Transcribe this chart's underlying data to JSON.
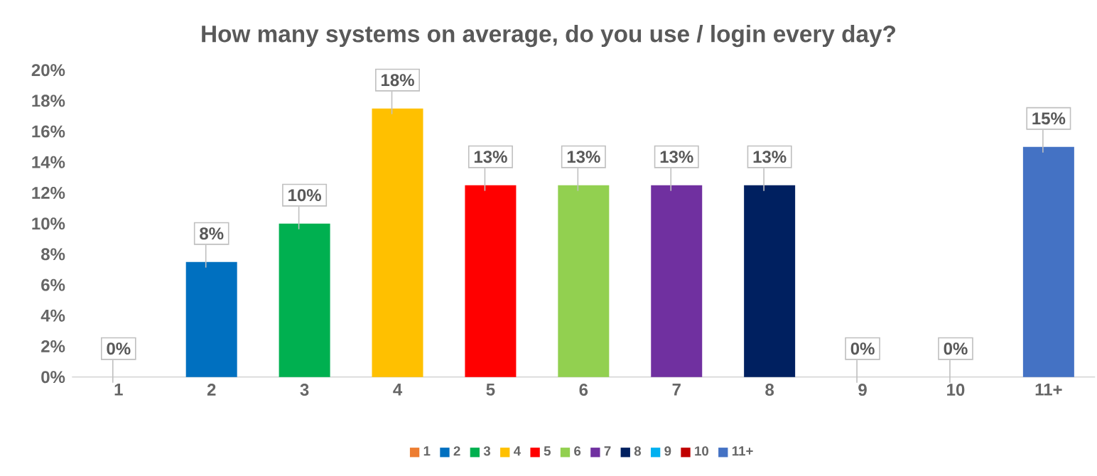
{
  "chart_data": {
    "type": "bar",
    "title": "How many systems on average, do you use / login every day?",
    "categories": [
      "1",
      "2",
      "3",
      "4",
      "5",
      "6",
      "7",
      "8",
      "9",
      "10",
      "11+"
    ],
    "series": [
      {
        "name": "1",
        "color": "#ed7d31",
        "values": [
          0,
          null,
          null,
          null,
          null,
          null,
          null,
          null,
          null,
          null,
          null
        ],
        "value_labels": [
          "0%",
          null,
          null,
          null,
          null,
          null,
          null,
          null,
          null,
          null,
          null
        ]
      },
      {
        "name": "2",
        "color": "#0070c0",
        "values": [
          null,
          7.5,
          null,
          null,
          null,
          null,
          null,
          null,
          null,
          null,
          null
        ],
        "value_labels": [
          null,
          "8%",
          null,
          null,
          null,
          null,
          null,
          null,
          null,
          null,
          null
        ]
      },
      {
        "name": "3",
        "color": "#00b050",
        "values": [
          null,
          null,
          10,
          null,
          null,
          null,
          null,
          null,
          null,
          null,
          null
        ],
        "value_labels": [
          null,
          null,
          "10%",
          null,
          null,
          null,
          null,
          null,
          null,
          null,
          null
        ]
      },
      {
        "name": "4",
        "color": "#ffc000",
        "values": [
          null,
          null,
          null,
          17.5,
          null,
          null,
          null,
          null,
          null,
          null,
          null
        ],
        "value_labels": [
          null,
          null,
          null,
          "18%",
          null,
          null,
          null,
          null,
          null,
          null,
          null
        ]
      },
      {
        "name": "5",
        "color": "#ff0000",
        "values": [
          null,
          null,
          null,
          null,
          12.5,
          null,
          null,
          null,
          null,
          null,
          null
        ],
        "value_labels": [
          null,
          null,
          null,
          null,
          "13%",
          null,
          null,
          null,
          null,
          null,
          null
        ]
      },
      {
        "name": "6",
        "color": "#92d050",
        "values": [
          null,
          null,
          null,
          null,
          null,
          12.5,
          null,
          null,
          null,
          null,
          null
        ],
        "value_labels": [
          null,
          null,
          null,
          null,
          null,
          "13%",
          null,
          null,
          null,
          null,
          null
        ]
      },
      {
        "name": "7",
        "color": "#7030a0",
        "values": [
          null,
          null,
          null,
          null,
          null,
          null,
          12.5,
          null,
          null,
          null,
          null
        ],
        "value_labels": [
          null,
          null,
          null,
          null,
          null,
          null,
          "13%",
          null,
          null,
          null,
          null
        ]
      },
      {
        "name": "8",
        "color": "#002060",
        "values": [
          null,
          null,
          null,
          null,
          null,
          null,
          null,
          12.5,
          null,
          null,
          null
        ],
        "value_labels": [
          null,
          null,
          null,
          null,
          null,
          null,
          null,
          "13%",
          null,
          null,
          null
        ]
      },
      {
        "name": "9",
        "color": "#00b0f0",
        "values": [
          null,
          null,
          null,
          null,
          null,
          null,
          null,
          null,
          0,
          null,
          null
        ],
        "value_labels": [
          null,
          null,
          null,
          null,
          null,
          null,
          null,
          null,
          "0%",
          null,
          null
        ]
      },
      {
        "name": "10",
        "color": "#c00000",
        "values": [
          null,
          null,
          null,
          null,
          null,
          null,
          null,
          null,
          null,
          0,
          null
        ],
        "value_labels": [
          null,
          null,
          null,
          null,
          null,
          null,
          null,
          null,
          null,
          "0%",
          null
        ]
      },
      {
        "name": "11+",
        "color": "#4472c4",
        "values": [
          null,
          null,
          null,
          null,
          null,
          null,
          null,
          null,
          null,
          null,
          15
        ],
        "value_labels": [
          null,
          null,
          null,
          null,
          null,
          null,
          null,
          null,
          null,
          null,
          "15%"
        ]
      }
    ],
    "ylim": [
      0,
      20
    ],
    "yticks": [
      {
        "value": 0,
        "label": "0%"
      },
      {
        "value": 2,
        "label": "2%"
      },
      {
        "value": 4,
        "label": "4%"
      },
      {
        "value": 6,
        "label": "6%"
      },
      {
        "value": 8,
        "label": "8%"
      },
      {
        "value": 10,
        "label": "10%"
      },
      {
        "value": 12,
        "label": "12%"
      },
      {
        "value": 14,
        "label": "14%"
      },
      {
        "value": 16,
        "label": "16%"
      },
      {
        "value": 18,
        "label": "18%"
      },
      {
        "value": 20,
        "label": "20%"
      }
    ],
    "grid": false,
    "legend": "bottom"
  }
}
